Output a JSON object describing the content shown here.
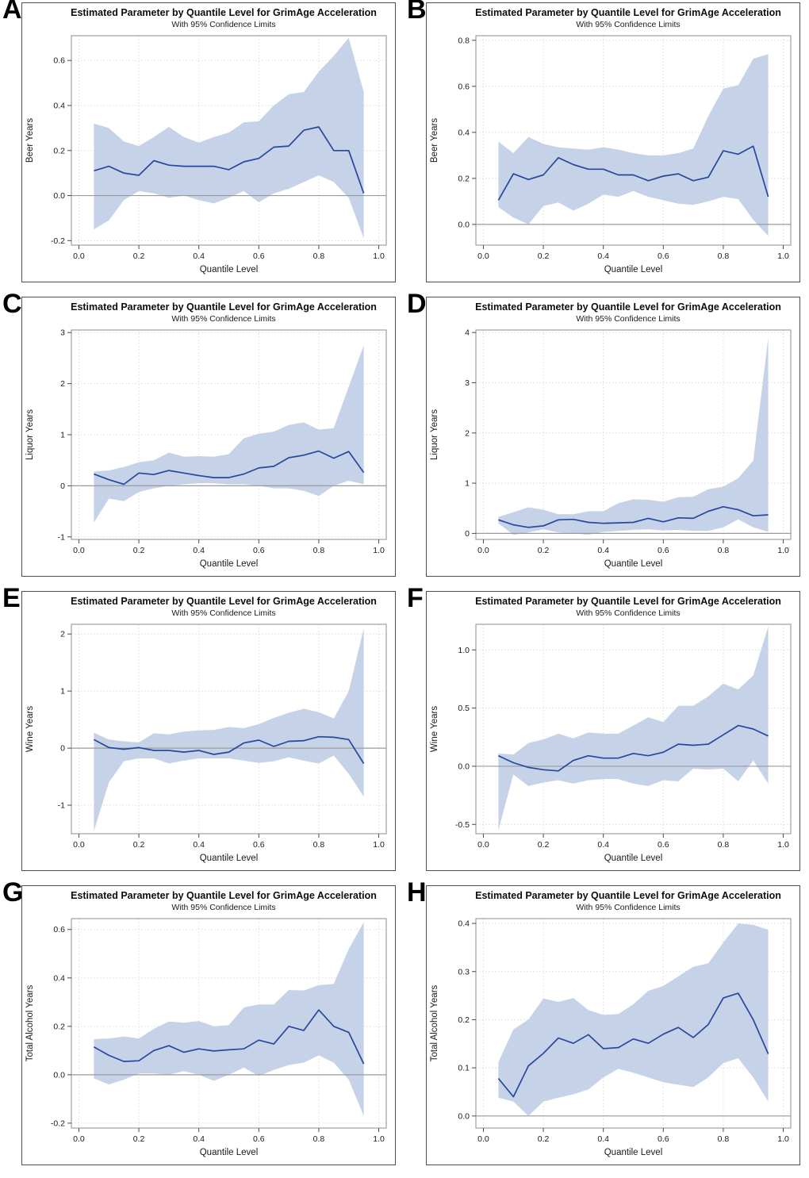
{
  "style": {
    "band_color": "#c5d2e8",
    "line_color": "#27489d",
    "frame_color": "#8c8c8c",
    "grid_color": "#dcdcdc",
    "refline_color": "#9b9b9b",
    "text_color": "#1a1a1a"
  },
  "chart_data": [
    {
      "panel_label": "A",
      "type": "line",
      "title": "Estimated Parameter by Quantile Level for GrimAge Acceleration",
      "subtitle": "With 95% Confidence Limits",
      "xlabel": "Quantile Level",
      "ylabel": "Beer Years",
      "legend": "none",
      "grid": true,
      "x": [
        0.05,
        0.1,
        0.15,
        0.2,
        0.25,
        0.3,
        0.35,
        0.4,
        0.45,
        0.5,
        0.55,
        0.6,
        0.65,
        0.7,
        0.75,
        0.8,
        0.85,
        0.9,
        0.95
      ],
      "series": [
        {
          "name": "Estimate",
          "values": [
            0.11,
            0.13,
            0.1,
            0.09,
            0.155,
            0.135,
            0.13,
            0.13,
            0.13,
            0.115,
            0.15,
            0.165,
            0.215,
            0.22,
            0.29,
            0.305,
            0.2,
            0.2,
            0.01
          ]
        },
        {
          "name": "Upper 95% CL",
          "values": [
            0.32,
            0.3,
            0.24,
            0.22,
            0.26,
            0.305,
            0.26,
            0.235,
            0.26,
            0.28,
            0.325,
            0.33,
            0.4,
            0.45,
            0.46,
            0.55,
            0.62,
            0.7,
            0.46
          ]
        },
        {
          "name": "Lower 95% CL",
          "values": [
            -0.15,
            -0.11,
            -0.02,
            0.02,
            0.01,
            -0.01,
            0.0,
            -0.02,
            -0.035,
            -0.01,
            0.02,
            -0.03,
            0.01,
            0.03,
            0.06,
            0.09,
            0.06,
            -0.01,
            -0.19
          ]
        }
      ],
      "xlim": [
        -0.025,
        1.025
      ],
      "ylim": [
        -0.22,
        0.71
      ],
      "xticks": [
        0,
        0.2,
        0.4,
        0.6,
        0.8,
        1.0
      ],
      "xtick_labels": [
        "0.0",
        "0.2",
        "0.4",
        "0.6",
        "0.8",
        "1.0"
      ],
      "yticks": [
        -0.2,
        0,
        0.2,
        0.4,
        0.6
      ],
      "ytick_labels": [
        "-0.2",
        "0.0",
        "0.2",
        "0.4",
        "0.6"
      ]
    },
    {
      "panel_label": "B",
      "type": "line",
      "title": "Estimated Parameter by Quantile Level for GrimAge Acceleration",
      "subtitle": "With 95% Confidence Limits",
      "xlabel": "Quantile Level",
      "ylabel": "Beer Years",
      "legend": "none",
      "grid": true,
      "x": [
        0.05,
        0.1,
        0.15,
        0.2,
        0.25,
        0.3,
        0.35,
        0.4,
        0.45,
        0.5,
        0.55,
        0.6,
        0.65,
        0.7,
        0.75,
        0.8,
        0.85,
        0.9,
        0.95
      ],
      "series": [
        {
          "name": "Estimate",
          "values": [
            0.105,
            0.22,
            0.195,
            0.215,
            0.29,
            0.26,
            0.24,
            0.24,
            0.215,
            0.215,
            0.19,
            0.21,
            0.22,
            0.19,
            0.205,
            0.32,
            0.305,
            0.34,
            0.12
          ]
        },
        {
          "name": "Upper 95% CL",
          "values": [
            0.36,
            0.31,
            0.38,
            0.35,
            0.335,
            0.33,
            0.325,
            0.335,
            0.325,
            0.31,
            0.3,
            0.3,
            0.31,
            0.33,
            0.47,
            0.59,
            0.605,
            0.72,
            0.74
          ]
        },
        {
          "name": "Lower 95% CL",
          "values": [
            0.075,
            0.03,
            0.0,
            0.08,
            0.095,
            0.06,
            0.09,
            0.13,
            0.12,
            0.145,
            0.12,
            0.105,
            0.09,
            0.085,
            0.1,
            0.12,
            0.11,
            0.02,
            -0.05
          ]
        }
      ],
      "xlim": [
        -0.025,
        1.025
      ],
      "ylim": [
        -0.09,
        0.82
      ],
      "xticks": [
        0,
        0.2,
        0.4,
        0.6,
        0.8,
        1.0
      ],
      "xtick_labels": [
        "0.0",
        "0.2",
        "0.4",
        "0.6",
        "0.8",
        "1.0"
      ],
      "yticks": [
        0,
        0.2,
        0.4,
        0.6,
        0.8
      ],
      "ytick_labels": [
        "0.0",
        "0.2",
        "0.4",
        "0.6",
        "0.8"
      ]
    },
    {
      "panel_label": "C",
      "type": "line",
      "title": "Estimated Parameter by Quantile Level for GrimAge Acceleration",
      "subtitle": "With 95% Confidence Limits",
      "xlabel": "Quantile Level",
      "ylabel": "Liquor Years",
      "legend": "none",
      "grid": true,
      "x": [
        0.05,
        0.1,
        0.15,
        0.2,
        0.25,
        0.3,
        0.35,
        0.4,
        0.45,
        0.5,
        0.55,
        0.6,
        0.65,
        0.7,
        0.75,
        0.8,
        0.85,
        0.9,
        0.95
      ],
      "series": [
        {
          "name": "Estimate",
          "values": [
            0.23,
            0.12,
            0.03,
            0.25,
            0.22,
            0.3,
            0.25,
            0.2,
            0.16,
            0.16,
            0.23,
            0.35,
            0.38,
            0.55,
            0.6,
            0.68,
            0.54,
            0.67,
            0.26
          ]
        },
        {
          "name": "Upper 95% CL",
          "values": [
            0.28,
            0.3,
            0.37,
            0.46,
            0.5,
            0.65,
            0.57,
            0.58,
            0.57,
            0.62,
            0.93,
            1.02,
            1.06,
            1.19,
            1.24,
            1.1,
            1.13,
            1.94,
            2.75
          ]
        },
        {
          "name": "Lower 95% CL",
          "values": [
            -0.72,
            -0.25,
            -0.3,
            -0.12,
            -0.05,
            0.0,
            0.03,
            0.05,
            0.05,
            0.03,
            0.03,
            0.0,
            -0.05,
            -0.05,
            -0.1,
            -0.2,
            0.0,
            0.1,
            0.03
          ]
        }
      ],
      "xlim": [
        -0.025,
        1.025
      ],
      "ylim": [
        -1.05,
        3.05
      ],
      "xticks": [
        0,
        0.2,
        0.4,
        0.6,
        0.8,
        1.0
      ],
      "xtick_labels": [
        "0.0",
        "0.2",
        "0.4",
        "0.6",
        "0.8",
        "1.0"
      ],
      "yticks": [
        -1,
        0,
        1,
        2,
        3
      ],
      "ytick_labels": [
        "-1",
        "0",
        "1",
        "2",
        "3"
      ]
    },
    {
      "panel_label": "D",
      "type": "line",
      "title": "Estimated Parameter by Quantile Level for GrimAge Acceleration",
      "subtitle": "With 95% Confidence Limits",
      "xlabel": "Quantile Level",
      "ylabel": "Liquor Years",
      "legend": "none",
      "grid": true,
      "x": [
        0.05,
        0.1,
        0.15,
        0.2,
        0.25,
        0.3,
        0.35,
        0.4,
        0.45,
        0.5,
        0.55,
        0.6,
        0.65,
        0.7,
        0.75,
        0.8,
        0.85,
        0.9,
        0.95
      ],
      "series": [
        {
          "name": "Estimate",
          "values": [
            0.27,
            0.17,
            0.12,
            0.15,
            0.27,
            0.28,
            0.22,
            0.2,
            0.21,
            0.22,
            0.3,
            0.23,
            0.31,
            0.3,
            0.44,
            0.53,
            0.47,
            0.35,
            0.37
          ]
        },
        {
          "name": "Upper 95% CL",
          "values": [
            0.33,
            0.42,
            0.52,
            0.47,
            0.38,
            0.38,
            0.44,
            0.44,
            0.6,
            0.68,
            0.67,
            0.63,
            0.72,
            0.73,
            0.88,
            0.93,
            1.1,
            1.45,
            3.9
          ]
        },
        {
          "name": "Lower 95% CL",
          "values": [
            0.2,
            -0.03,
            0.02,
            0.08,
            0.02,
            0.0,
            -0.03,
            0.03,
            0.05,
            0.07,
            0.08,
            0.06,
            0.07,
            0.05,
            0.05,
            0.12,
            0.28,
            0.12,
            0.03
          ]
        }
      ],
      "xlim": [
        -0.025,
        1.025
      ],
      "ylim": [
        -0.12,
        4.05
      ],
      "xticks": [
        0,
        0.2,
        0.4,
        0.6,
        0.8,
        1.0
      ],
      "xtick_labels": [
        "0.0",
        "0.2",
        "0.4",
        "0.6",
        "0.8",
        "1.0"
      ],
      "yticks": [
        0,
        1,
        2,
        3,
        4
      ],
      "ytick_labels": [
        "0",
        "1",
        "2",
        "3",
        "4"
      ]
    },
    {
      "panel_label": "E",
      "type": "line",
      "title": "Estimated Parameter by Quantile Level for GrimAge Acceleration",
      "subtitle": "With 95% Confidence Limits",
      "xlabel": "Quantile Level",
      "ylabel": "Wine Years",
      "legend": "none",
      "grid": true,
      "x": [
        0.05,
        0.1,
        0.15,
        0.2,
        0.25,
        0.3,
        0.35,
        0.4,
        0.45,
        0.5,
        0.55,
        0.6,
        0.65,
        0.7,
        0.75,
        0.8,
        0.85,
        0.9,
        0.95
      ],
      "series": [
        {
          "name": "Estimate",
          "values": [
            0.15,
            0.01,
            -0.02,
            0.01,
            -0.04,
            -0.04,
            -0.07,
            -0.04,
            -0.11,
            -0.07,
            0.09,
            0.14,
            0.03,
            0.12,
            0.13,
            0.2,
            0.19,
            0.15,
            -0.27
          ]
        },
        {
          "name": "Upper 95% CL",
          "values": [
            0.27,
            0.15,
            0.12,
            0.1,
            0.26,
            0.24,
            0.29,
            0.31,
            0.32,
            0.37,
            0.35,
            0.42,
            0.53,
            0.62,
            0.69,
            0.63,
            0.52,
            1.0,
            2.1
          ]
        },
        {
          "name": "Lower 95% CL",
          "values": [
            -1.45,
            -0.6,
            -0.23,
            -0.18,
            -0.18,
            -0.27,
            -0.22,
            -0.18,
            -0.18,
            -0.18,
            -0.22,
            -0.26,
            -0.23,
            -0.16,
            -0.22,
            -0.27,
            -0.13,
            -0.45,
            -0.85
          ]
        }
      ],
      "xlim": [
        -0.025,
        1.025
      ],
      "ylim": [
        -1.5,
        2.17
      ],
      "xticks": [
        0,
        0.2,
        0.4,
        0.6,
        0.8,
        1.0
      ],
      "xtick_labels": [
        "0.0",
        "0.2",
        "0.4",
        "0.6",
        "0.8",
        "1.0"
      ],
      "yticks": [
        -1,
        0,
        1,
        2
      ],
      "ytick_labels": [
        "-1",
        "0",
        "1",
        "2"
      ]
    },
    {
      "panel_label": "F",
      "type": "line",
      "title": "Estimated Parameter by Quantile Level for GrimAge Acceleration",
      "subtitle": "With 95% Confidence Limits",
      "xlabel": "Quantile Level",
      "ylabel": "Wine Years",
      "legend": "none",
      "grid": true,
      "x": [
        0.05,
        0.1,
        0.15,
        0.2,
        0.25,
        0.3,
        0.35,
        0.4,
        0.45,
        0.5,
        0.55,
        0.6,
        0.65,
        0.7,
        0.75,
        0.8,
        0.85,
        0.9,
        0.95
      ],
      "series": [
        {
          "name": "Estimate",
          "values": [
            0.09,
            0.03,
            -0.01,
            -0.03,
            -0.04,
            0.05,
            0.09,
            0.07,
            0.07,
            0.11,
            0.09,
            0.12,
            0.19,
            0.18,
            0.19,
            0.27,
            0.35,
            0.32,
            0.26
          ]
        },
        {
          "name": "Upper 95% CL",
          "values": [
            0.11,
            0.1,
            0.2,
            0.23,
            0.28,
            0.24,
            0.29,
            0.28,
            0.28,
            0.35,
            0.42,
            0.38,
            0.52,
            0.52,
            0.6,
            0.71,
            0.66,
            0.78,
            1.2
          ]
        },
        {
          "name": "Lower 95% CL",
          "values": [
            -0.55,
            -0.07,
            -0.17,
            -0.14,
            -0.12,
            -0.15,
            -0.12,
            -0.11,
            -0.11,
            -0.15,
            -0.17,
            -0.12,
            -0.13,
            -0.02,
            -0.03,
            -0.02,
            -0.13,
            0.05,
            -0.15
          ]
        }
      ],
      "xlim": [
        -0.025,
        1.025
      ],
      "ylim": [
        -0.58,
        1.22
      ],
      "xticks": [
        0,
        0.2,
        0.4,
        0.6,
        0.8,
        1.0
      ],
      "xtick_labels": [
        "0.0",
        "0.2",
        "0.4",
        "0.6",
        "0.8",
        "1.0"
      ],
      "yticks": [
        -0.5,
        0,
        0.5,
        1.0
      ],
      "ytick_labels": [
        "-0.5",
        "0.0",
        "0.5",
        "1.0"
      ]
    },
    {
      "panel_label": "G",
      "type": "line",
      "title": "Estimated Parameter by Quantile Level for GrimAge Acceleration",
      "subtitle": "With 95% Confidence Limits",
      "xlabel": "Quantile Level",
      "ylabel": "Total Alcohol Years",
      "legend": "none",
      "grid": true,
      "x": [
        0.05,
        0.1,
        0.15,
        0.2,
        0.25,
        0.3,
        0.35,
        0.4,
        0.45,
        0.5,
        0.55,
        0.6,
        0.65,
        0.7,
        0.75,
        0.8,
        0.85,
        0.9,
        0.95
      ],
      "series": [
        {
          "name": "Estimate",
          "values": [
            0.115,
            0.08,
            0.055,
            0.058,
            0.1,
            0.12,
            0.093,
            0.107,
            0.098,
            0.103,
            0.107,
            0.143,
            0.127,
            0.2,
            0.183,
            0.268,
            0.2,
            0.175,
            0.045
          ]
        },
        {
          "name": "Upper 95% CL",
          "values": [
            0.147,
            0.15,
            0.158,
            0.15,
            0.19,
            0.22,
            0.215,
            0.222,
            0.2,
            0.205,
            0.278,
            0.29,
            0.29,
            0.35,
            0.348,
            0.37,
            0.375,
            0.52,
            0.63
          ]
        },
        {
          "name": "Lower 95% CL",
          "values": [
            -0.015,
            -0.04,
            -0.02,
            0.005,
            0.005,
            0.0,
            0.015,
            0.0,
            -0.025,
            0.0,
            0.03,
            -0.005,
            0.02,
            0.04,
            0.05,
            0.08,
            0.05,
            -0.02,
            -0.17
          ]
        }
      ],
      "xlim": [
        -0.025,
        1.025
      ],
      "ylim": [
        -0.22,
        0.645
      ],
      "xticks": [
        0,
        0.2,
        0.4,
        0.6,
        0.8,
        1.0
      ],
      "xtick_labels": [
        "0.0",
        "0.2",
        "0.4",
        "0.6",
        "0.8",
        "1.0"
      ],
      "yticks": [
        -0.2,
        0,
        0.2,
        0.4,
        0.6
      ],
      "ytick_labels": [
        "-0.2",
        "0.0",
        "0.2",
        "0.4",
        "0.6"
      ]
    },
    {
      "panel_label": "H",
      "type": "line",
      "title": "Estimated Parameter by Quantile Level for GrimAge Acceleration",
      "subtitle": "With 95% Confidence Limits",
      "xlabel": "Quantile Level",
      "ylabel": "Total Alcohol Years",
      "legend": "none",
      "grid": true,
      "x": [
        0.05,
        0.1,
        0.15,
        0.2,
        0.25,
        0.3,
        0.35,
        0.4,
        0.45,
        0.5,
        0.55,
        0.6,
        0.65,
        0.7,
        0.75,
        0.8,
        0.85,
        0.9,
        0.95
      ],
      "series": [
        {
          "name": "Estimate",
          "values": [
            0.078,
            0.04,
            0.104,
            0.13,
            0.162,
            0.151,
            0.169,
            0.14,
            0.142,
            0.16,
            0.151,
            0.17,
            0.184,
            0.163,
            0.19,
            0.245,
            0.255,
            0.2,
            0.129
          ]
        },
        {
          "name": "Upper 95% CL",
          "values": [
            0.112,
            0.18,
            0.2,
            0.244,
            0.237,
            0.245,
            0.22,
            0.21,
            0.212,
            0.232,
            0.26,
            0.27,
            0.29,
            0.31,
            0.317,
            0.36,
            0.4,
            0.397,
            0.387
          ]
        },
        {
          "name": "Lower 95% CL",
          "values": [
            0.038,
            0.03,
            0.0,
            0.03,
            0.038,
            0.045,
            0.055,
            0.08,
            0.098,
            0.09,
            0.08,
            0.07,
            0.065,
            0.06,
            0.08,
            0.11,
            0.12,
            0.08,
            0.03
          ]
        }
      ],
      "xlim": [
        -0.025,
        1.025
      ],
      "ylim": [
        -0.025,
        0.41
      ],
      "xticks": [
        0,
        0.2,
        0.4,
        0.6,
        0.8,
        1.0
      ],
      "xtick_labels": [
        "0.0",
        "0.2",
        "0.4",
        "0.6",
        "0.8",
        "1.0"
      ],
      "yticks": [
        0,
        0.1,
        0.2,
        0.3,
        0.4
      ],
      "ytick_labels": [
        "0.0",
        "0.1",
        "0.2",
        "0.3",
        "0.4"
      ]
    }
  ]
}
